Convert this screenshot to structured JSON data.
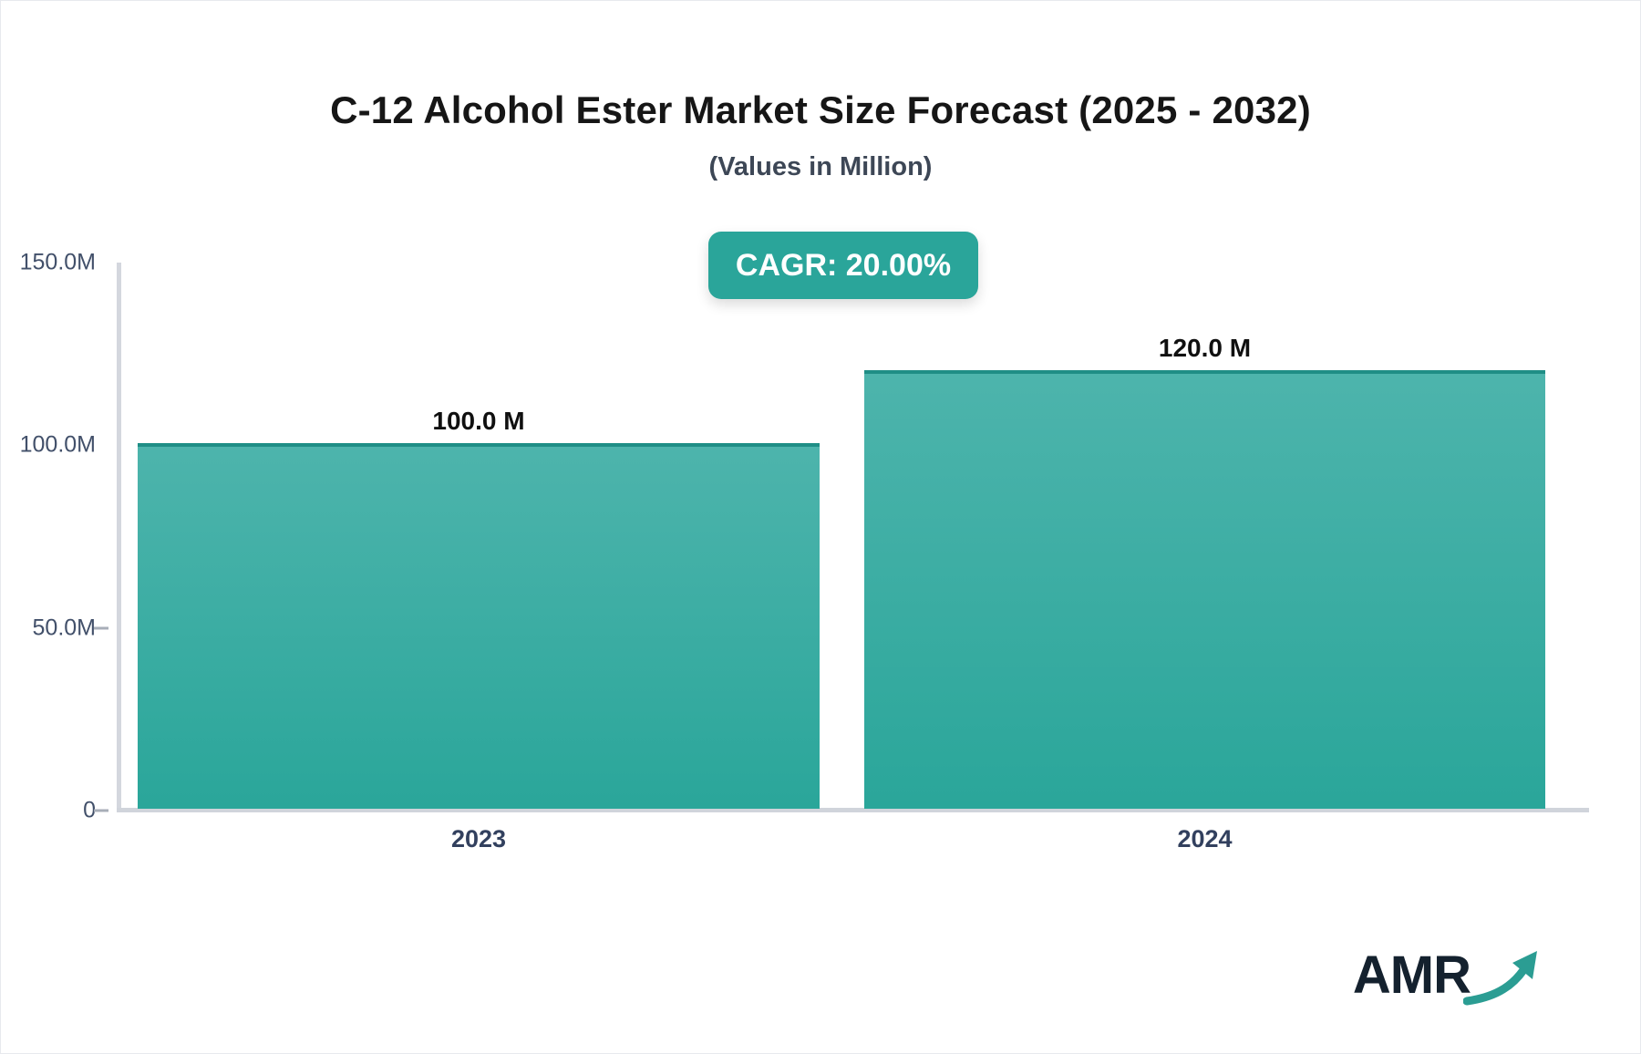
{
  "header": {
    "title": "C-12 Alcohol Ester Market Size Forecast (2025 - 2032)",
    "subtitle": "(Values in Million)"
  },
  "badge": {
    "label": "CAGR: 20.00%"
  },
  "chart_data": {
    "type": "bar",
    "title": "C-12 Alcohol Ester Market Size Forecast (2025 - 2032)",
    "subtitle": "(Values in Million)",
    "categories": [
      "2023",
      "2024"
    ],
    "values": [
      100.0,
      120.0
    ],
    "value_labels": [
      "100.0 M",
      "120.0 M"
    ],
    "unit": "Million",
    "cagr": "20.00%",
    "xlabel": "",
    "ylabel": "",
    "ylim": [
      0,
      150
    ],
    "yticks": [
      {
        "label": "150.0M",
        "value": 150
      },
      {
        "label": "100.0M",
        "value": 100
      },
      {
        "label": "50.0M",
        "value": 50
      },
      {
        "label": "0",
        "value": 0
      }
    ],
    "grid": false,
    "legend_position": "none",
    "colors": {
      "bar_gradient_top": "#4db4ac",
      "bar_gradient_bottom": "#2aa69a",
      "bar_top_border": "#1f8e86",
      "badge_background": "#2aa59a",
      "axis_line": "#d4d7de",
      "tick_label": "#42506a",
      "category_label": "#32405e",
      "title": "#161616"
    }
  },
  "logo": {
    "text": "AMR"
  }
}
